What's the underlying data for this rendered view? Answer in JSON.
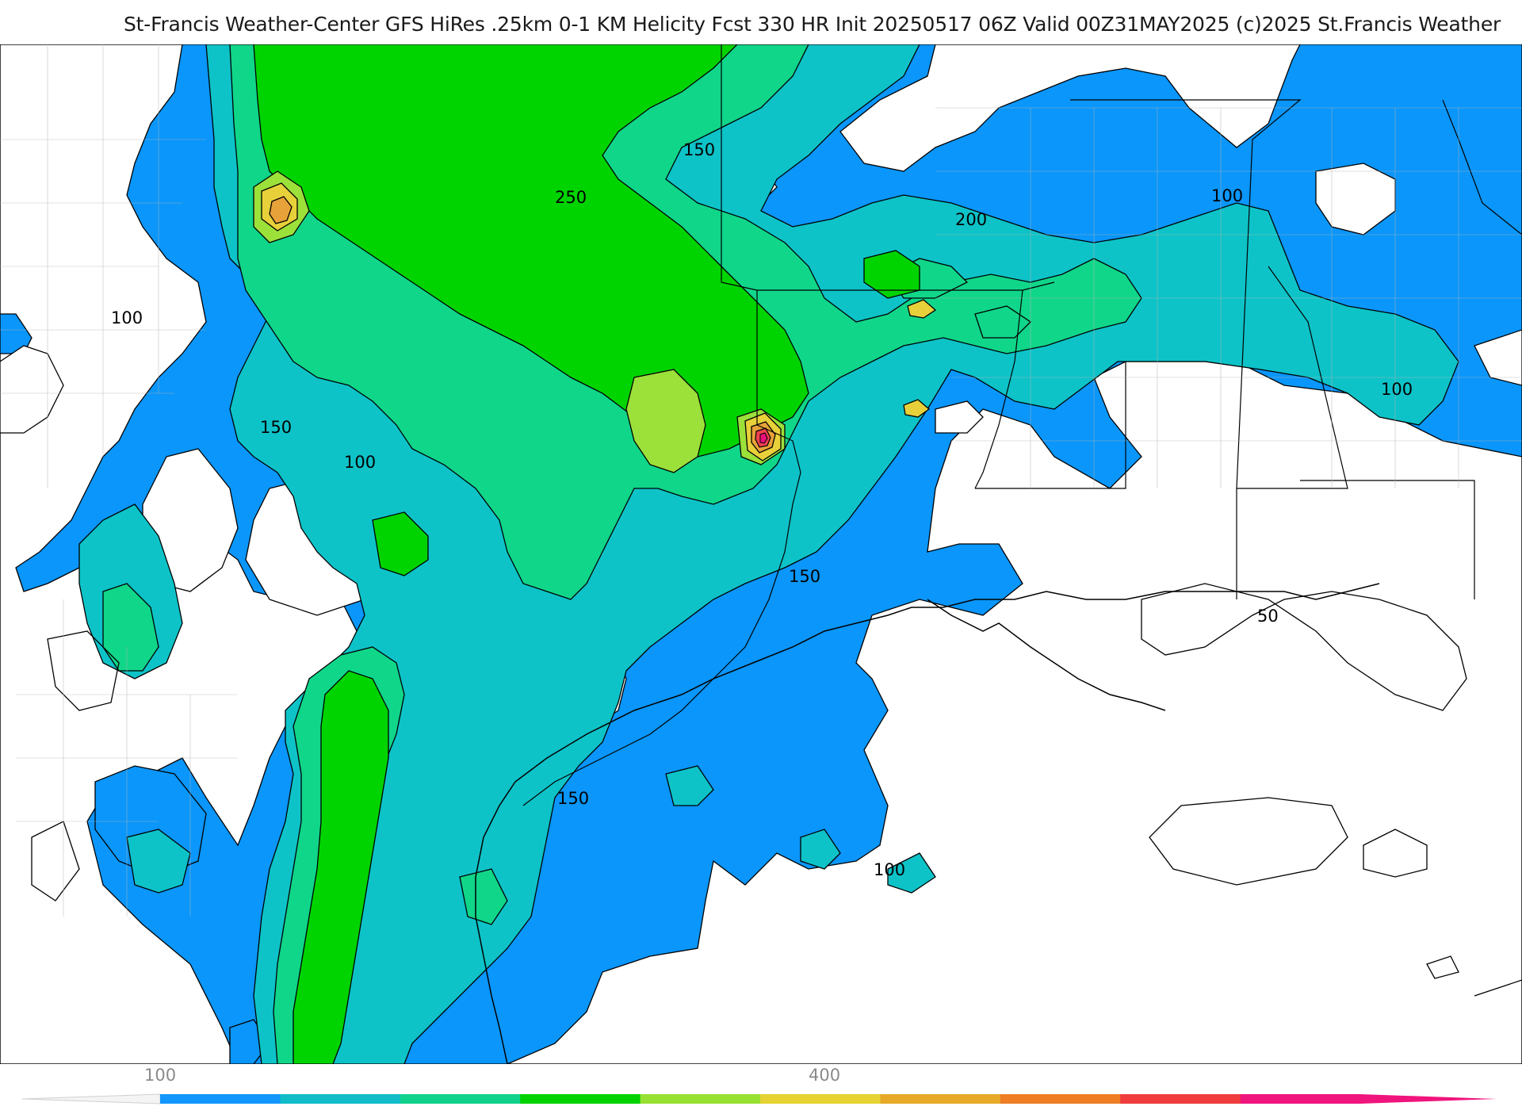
{
  "title": "St-Francis Weather-Center GFS HiRes .25km 0-1 KM Helicity Fcst 330 HR Init 20250517 06Z  Valid 00Z31MAY2025    (c)2025 St.Francis Weather",
  "contour_labels": [
    "150",
    "250",
    "200",
    "100",
    "100",
    "150",
    "100",
    "100",
    "150",
    "50",
    "150",
    "100"
  ],
  "colorbar": {
    "tick_labels": [
      "100",
      "400"
    ],
    "colors": [
      "#1296ff",
      "#10bcc8",
      "#10d28c",
      "#00d200",
      "#96e132",
      "#e6d232",
      "#e6aa28",
      "#ee7d23",
      "#f03c3c",
      "#f0147d"
    ]
  },
  "fill_colors": {
    "level_100": "#0a96fa",
    "level_150": "#0dc3c8",
    "level_200": "#10d68a",
    "level_250": "#00d400",
    "level_300": "#9ce03a",
    "level_350": "#e8d03a",
    "level_400": "#e8a23a",
    "level_450": "#ee4050",
    "level_500": "#e8107a"
  }
}
